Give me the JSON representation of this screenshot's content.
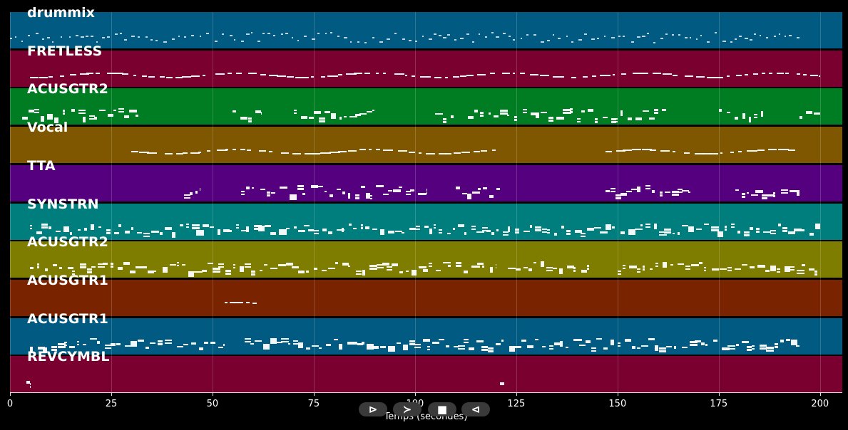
{
  "chart_data": {
    "type": "piano-roll",
    "xlabel": "Temps (secondes)",
    "xlim": [
      0,
      205.5
    ],
    "x_ticks": [
      0,
      25,
      50,
      75,
      100,
      125,
      150,
      175,
      200
    ],
    "grid": true,
    "tracks": [
      {
        "name": "drummix",
        "color": "#005a82",
        "segments": [
          [
            0,
            195
          ]
        ],
        "density": "high",
        "style": "dots"
      },
      {
        "name": "FRETLESS",
        "color": "#7a0030",
        "segments": [
          [
            5,
            200
          ]
        ],
        "density": "medium",
        "style": "line"
      },
      {
        "name": "ACUSGTR2",
        "color": "#007d22",
        "segments": [
          [
            3,
            32
          ],
          [
            55,
            62
          ],
          [
            70,
            90
          ],
          [
            105,
            110
          ],
          [
            113,
            162
          ],
          [
            175,
            186
          ],
          [
            195,
            200
          ]
        ],
        "density": "high",
        "style": "blocks"
      },
      {
        "name": "Vocal",
        "color": "#7f5700",
        "segments": [
          [
            30,
            120
          ],
          [
            147,
            195
          ]
        ],
        "density": "medium",
        "style": "line"
      },
      {
        "name": "TTA",
        "color": "#55007f",
        "segments": [
          [
            43,
            47
          ],
          [
            57,
            103
          ],
          [
            110,
            121
          ],
          [
            147,
            168
          ],
          [
            179,
            195
          ]
        ],
        "density": "high",
        "style": "blocks"
      },
      {
        "name": "SYNSTRN",
        "color": "#007d7d",
        "segments": [
          [
            5,
            200
          ]
        ],
        "density": "high",
        "style": "blocks"
      },
      {
        "name": "ACUSGTR2",
        "color": "#7f7d00",
        "segments": [
          [
            5,
            120
          ],
          [
            123,
            143
          ],
          [
            150,
            200
          ]
        ],
        "density": "high",
        "style": "blocks"
      },
      {
        "name": "ACUSGTR1",
        "color": "#7a2300",
        "segments": [
          [
            53,
            61
          ]
        ],
        "density": "low",
        "style": "line"
      },
      {
        "name": "ACUSGTR1",
        "color": "#005a82",
        "segments": [
          [
            5,
            53
          ],
          [
            58,
            195
          ]
        ],
        "density": "high",
        "style": "blocks"
      },
      {
        "name": "REVCYMBL",
        "color": "#7a0030",
        "segments": [
          [
            4,
            5
          ],
          [
            121,
            122
          ]
        ],
        "density": "low",
        "style": "blocks"
      }
    ]
  },
  "controls": {
    "play": "⊳",
    "forward": "≻",
    "stop": "■",
    "back": "⊲"
  }
}
